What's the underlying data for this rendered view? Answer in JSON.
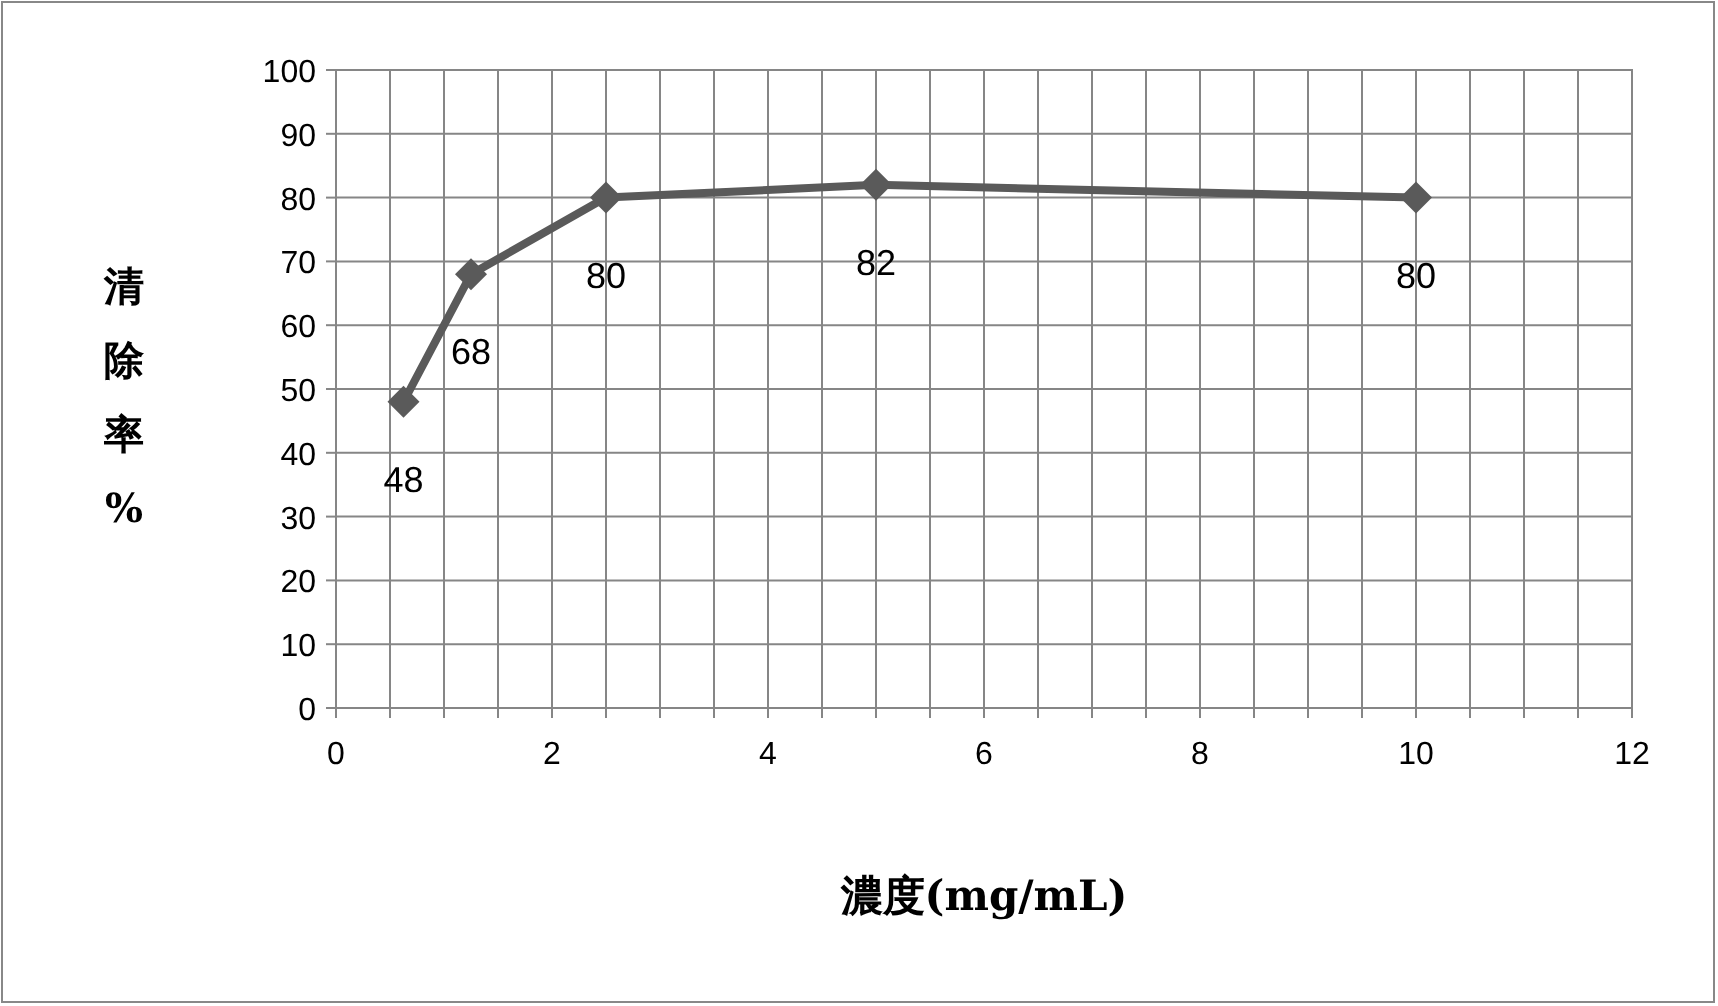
{
  "chart_data": {
    "type": "line",
    "xlabel": "濃度(mg/mL)",
    "ylabel": "清除率%",
    "x": [
      0.625,
      1.25,
      2.5,
      5,
      10
    ],
    "series": [
      {
        "color": "#5a5a5a",
        "values": [
          48,
          68,
          80,
          82,
          80
        ]
      }
    ],
    "xlim": [
      0,
      12
    ],
    "xticks": [
      0,
      {
        "value": 0.5,
        "label": null
      },
      2,
      {
        "value": 1,
        "label": null
      },
      {
        "value": 1.5,
        "label": null
      },
      {
        "value": 2.5,
        "label": null
      },
      {
        "value": 3,
        "label": null
      },
      {
        "value": 3.5,
        "label": null
      },
      4,
      {
        "value": 4.5,
        "label": null
      },
      {
        "value": 5,
        "label": null
      },
      {
        "value": 5.5,
        "label": null
      },
      6,
      {
        "value": 6.5,
        "label": null
      },
      {
        "value": 7,
        "label": null
      },
      {
        "value": 7.5,
        "label": null
      },
      8,
      {
        "value": 8.5,
        "label": null
      },
      {
        "value": 9,
        "label": null
      },
      {
        "value": 9.5,
        "label": null
      },
      10,
      {
        "value": 10.5,
        "label": null
      },
      {
        "value": 11,
        "label": null
      },
      {
        "value": 11.5,
        "label": null
      },
      12
    ],
    "ylim": [
      0,
      100
    ],
    "yticks": [
      0,
      10,
      20,
      30,
      40,
      50,
      60,
      70,
      80,
      90,
      100
    ],
    "grid": true,
    "marker": "diamond",
    "line_style": "solid",
    "data_labels": true
  }
}
